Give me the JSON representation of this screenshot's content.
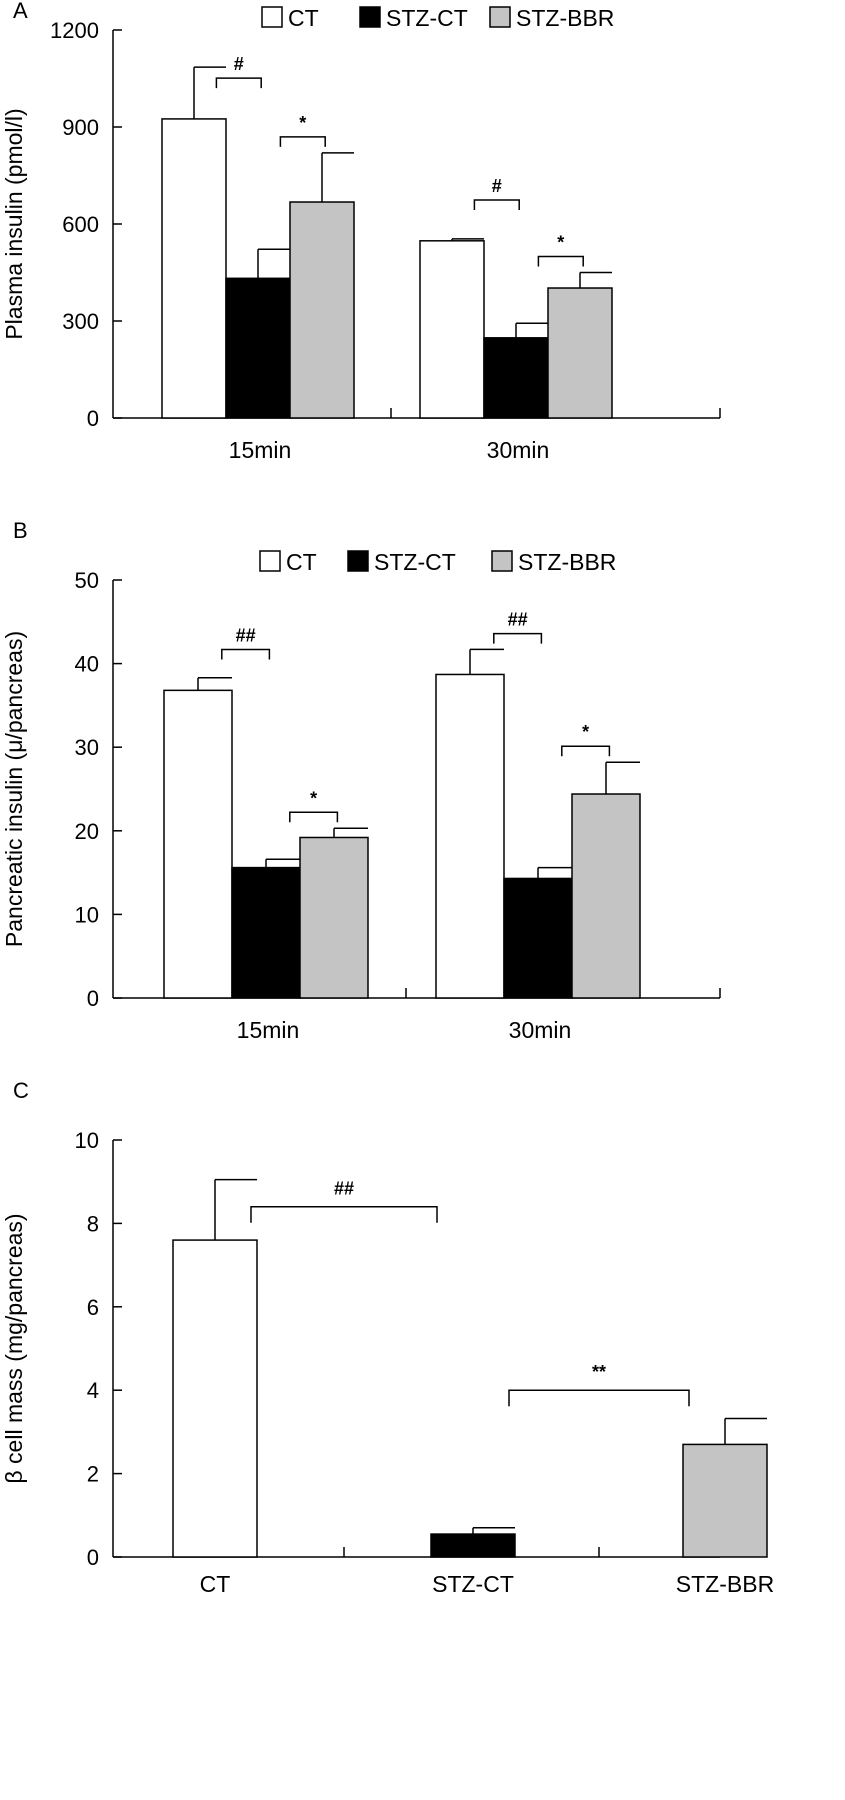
{
  "colors": {
    "CT": "#ffffff",
    "STZ-CT": "#000000",
    "STZ-BBR": "#c4c4c4",
    "stroke": "#000000"
  },
  "chart_data": [
    {
      "panel_label": "A",
      "type": "bar",
      "ylabel": "Plasma insulin (pmol/l)",
      "categories": [
        "15min",
        "30min"
      ],
      "ylim": [
        0,
        1200
      ],
      "yticks": [
        0,
        300,
        600,
        900,
        1200
      ],
      "legend": [
        "CT",
        "STZ-CT",
        "STZ-BBR"
      ],
      "legend_position": "top",
      "series": [
        {
          "name": "CT",
          "values": [
            925,
            548
          ],
          "errors": [
            160,
            6
          ]
        },
        {
          "name": "STZ-CT",
          "values": [
            432,
            248
          ],
          "errors": [
            90,
            45
          ]
        },
        {
          "name": "STZ-BBR",
          "values": [
            668,
            402
          ],
          "errors": [
            152,
            48
          ]
        }
      ],
      "annotations": [
        {
          "label": "#",
          "category": 0,
          "from": "CT",
          "to": "STZ-CT"
        },
        {
          "label": "*",
          "category": 0,
          "from": "STZ-CT",
          "to": "STZ-BBR"
        },
        {
          "label": "#",
          "category": 1,
          "from": "CT",
          "to": "STZ-CT"
        },
        {
          "label": "*",
          "category": 1,
          "from": "STZ-CT",
          "to": "STZ-BBR"
        }
      ]
    },
    {
      "panel_label": "B",
      "type": "bar",
      "ylabel": "Pancreatic insulin (μ/pancreas)",
      "categories": [
        "15min",
        "30min"
      ],
      "ylim": [
        0,
        50
      ],
      "yticks": [
        0,
        10,
        20,
        30,
        40,
        50
      ],
      "legend": [
        "CT",
        "STZ-CT",
        "STZ-BBR"
      ],
      "legend_position": "top",
      "series": [
        {
          "name": "CT",
          "values": [
            36.8,
            38.7
          ],
          "errors": [
            1.5,
            3.0
          ]
        },
        {
          "name": "STZ-CT",
          "values": [
            15.6,
            14.3
          ],
          "errors": [
            1.0,
            1.3
          ]
        },
        {
          "name": "STZ-BBR",
          "values": [
            19.2,
            24.4
          ],
          "errors": [
            1.1,
            3.8
          ]
        }
      ],
      "annotations": [
        {
          "label": "##",
          "category": 0,
          "from": "CT",
          "to": "STZ-CT"
        },
        {
          "label": "*",
          "category": 0,
          "from": "STZ-CT",
          "to": "STZ-BBR"
        },
        {
          "label": "##",
          "category": 1,
          "from": "CT",
          "to": "STZ-CT"
        },
        {
          "label": "*",
          "category": 1,
          "from": "STZ-CT",
          "to": "STZ-BBR"
        }
      ]
    },
    {
      "panel_label": "C",
      "type": "bar",
      "ylabel": "β cell mass (mg/pancreas)",
      "categories": [
        "CT",
        "STZ-CT",
        "STZ-BBR"
      ],
      "ylim": [
        0,
        10
      ],
      "yticks": [
        0,
        2,
        4,
        6,
        8,
        10
      ],
      "values": [
        7.6,
        0.55,
        2.7
      ],
      "errors": [
        1.45,
        0.15,
        0.62
      ],
      "annotations": [
        {
          "label": "##",
          "from": "CT",
          "to": "STZ-CT"
        },
        {
          "label": "**",
          "from": "STZ-CT",
          "to": "STZ-BBR"
        }
      ]
    }
  ]
}
